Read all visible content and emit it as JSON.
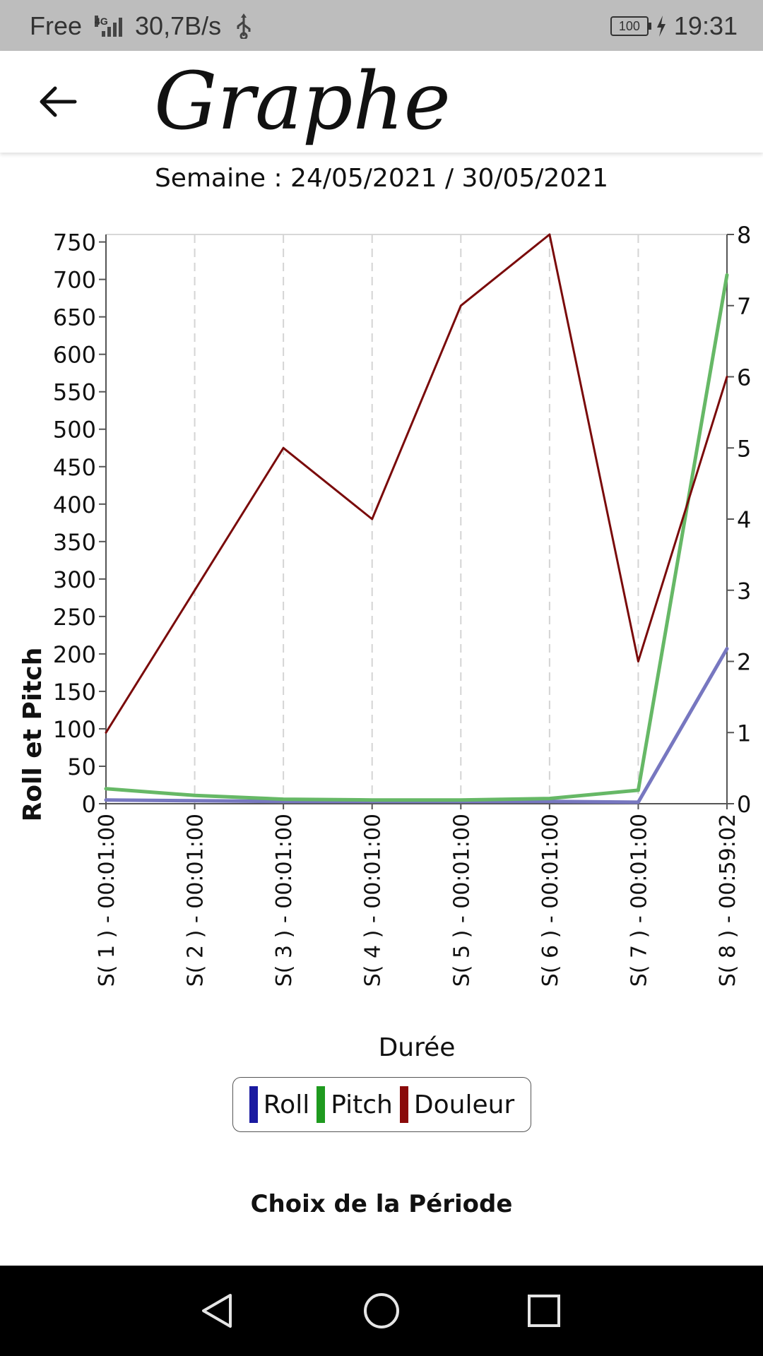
{
  "status_bar": {
    "carrier": "Free",
    "network": "4G",
    "speed": "30,7B/s",
    "battery": "100",
    "time": "19:31"
  },
  "app_bar": {
    "title": "Graphe",
    "back_icon": "arrow-back-icon"
  },
  "week_label": "Semaine : 24/05/2021 / 30/05/2021",
  "chart_data": {
    "type": "line",
    "xlabel": "Durée",
    "ylabel": "Roll et Pitch",
    "categories": [
      "S( 1 ) - 00:01:00",
      "S( 2 ) - 00:01:00",
      "S( 3 ) - 00:01:00",
      "S( 4 ) - 00:01:00",
      "S( 5 ) - 00:01:00",
      "S( 6 ) - 00:01:00",
      "S( 7 ) - 00:01:00",
      "S( 8 ) - 00:59:02"
    ],
    "ylim": [
      0,
      760
    ],
    "yticks": [
      0,
      50,
      100,
      150,
      200,
      250,
      300,
      350,
      400,
      450,
      500,
      550,
      600,
      650,
      700,
      750
    ],
    "y2lim": [
      0,
      8
    ],
    "y2ticks": [
      0,
      1,
      2,
      3,
      4,
      5,
      6,
      7,
      8
    ],
    "grid": "vertical-dashed",
    "series": [
      {
        "name": "Roll",
        "axis": "left",
        "color": "#7777c0",
        "values": [
          5,
          4,
          3,
          3,
          3,
          3,
          2,
          207
        ]
      },
      {
        "name": "Pitch",
        "axis": "left",
        "color": "#66b866",
        "values": [
          20,
          11,
          6,
          5,
          5,
          7,
          18,
          706
        ]
      },
      {
        "name": "Douleur",
        "axis": "right",
        "color": "#7a0a0a",
        "values": [
          1,
          3,
          5,
          4,
          7,
          8,
          2,
          6
        ]
      }
    ],
    "legend": [
      {
        "label": "Roll",
        "color": "#1a1aa0"
      },
      {
        "label": "Pitch",
        "color": "#1f9a1f"
      },
      {
        "label": "Douleur",
        "color": "#8a0a0a"
      }
    ]
  },
  "periode_label": "Choix de la Période",
  "nav": {
    "back": "nav-back-icon",
    "home": "nav-home-icon",
    "recents": "nav-recents-icon"
  }
}
